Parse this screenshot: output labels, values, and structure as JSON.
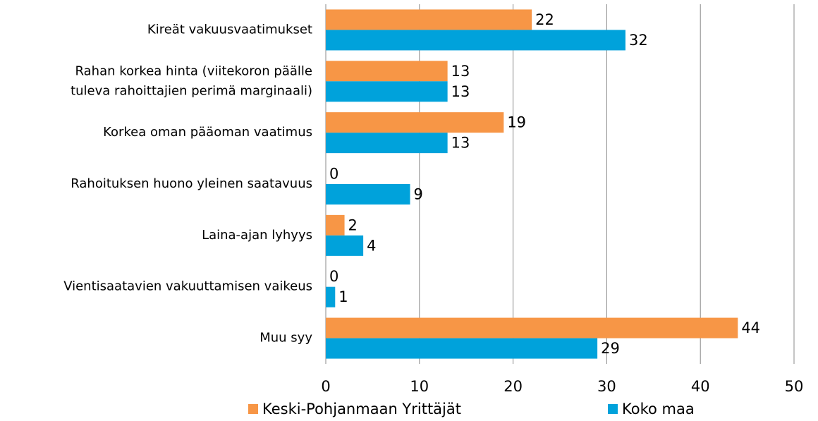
{
  "chart_data": {
    "type": "bar",
    "orientation": "horizontal",
    "categories": [
      "Kireät vakuusvaatimukset",
      "Rahan korkea hinta (viitekoron päälle\ntuleva rahoittajien perimä marginaali)",
      "Korkea oman pääoman vaatimus",
      "Rahoituksen huono yleinen saatavuus",
      "Laina-ajan lyhyys",
      "Vientisaatavien vakuuttamisen vaikeus",
      "Muu syy"
    ],
    "series": [
      {
        "name": "Keski-Pohjanmaan Yrittäjät",
        "color": "#f79646",
        "values": [
          22,
          13,
          19,
          0,
          2,
          0,
          44
        ]
      },
      {
        "name": "Koko maa",
        "color": "#00a2db",
        "values": [
          32,
          13,
          13,
          9,
          4,
          1,
          29
        ]
      }
    ],
    "xlim": [
      0,
      50
    ],
    "xticks": [
      0,
      10,
      20,
      30,
      40,
      50
    ],
    "grid": true,
    "legend": "bottom"
  }
}
